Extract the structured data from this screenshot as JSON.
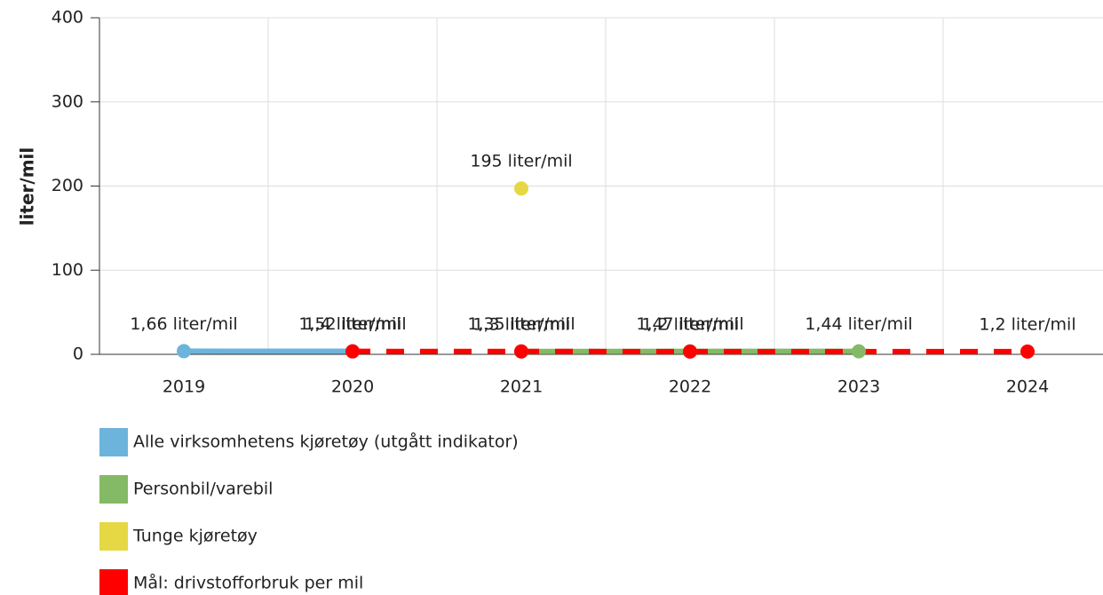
{
  "chart_data": {
    "type": "line",
    "y_label": "liter/mil",
    "categories": [
      "2019",
      "2020",
      "2021",
      "2022",
      "2023",
      "2024"
    ],
    "ylim": [
      0,
      400
    ],
    "yticks": [
      0,
      100,
      200,
      300,
      400
    ],
    "grid": true,
    "connect_gaps": true,
    "series": [
      {
        "name": "Alle virksomhetens kjøretøy (utgått indikator)",
        "color": "#6cb4dc",
        "style": "solid",
        "values": [
          1.66,
          1.52,
          null,
          null,
          null,
          null
        ],
        "value_labels": [
          "1,66 liter/mil",
          "1,52 liter/mil",
          null,
          null,
          null,
          null
        ]
      },
      {
        "name": "Personbil/varebil",
        "color": "#84b965",
        "style": "solid",
        "values": [
          null,
          null,
          1.35,
          1.47,
          1.44,
          null
        ],
        "value_labels": [
          null,
          null,
          "1,35 liter/mil",
          "1,47 liter/mil",
          "1,44 liter/mil",
          null
        ]
      },
      {
        "name": "Tunge kjøretøy",
        "color": "#e5d844",
        "style": "none",
        "values": [
          null,
          null,
          195,
          null,
          null,
          null
        ],
        "value_labels": [
          null,
          null,
          "195 liter/mil",
          null,
          null,
          null
        ]
      },
      {
        "name": "Mål: drivstofforbruk per mil",
        "color": "#ff0000",
        "style": "dashed",
        "values": [
          null,
          1.4,
          1.3,
          1.2,
          null,
          1.2
        ],
        "value_labels": [
          null,
          "1,4 liter/mil",
          "1,3 liter/mil",
          "1,2 liter/mil",
          null,
          "1,2 liter/mil"
        ]
      }
    ]
  }
}
